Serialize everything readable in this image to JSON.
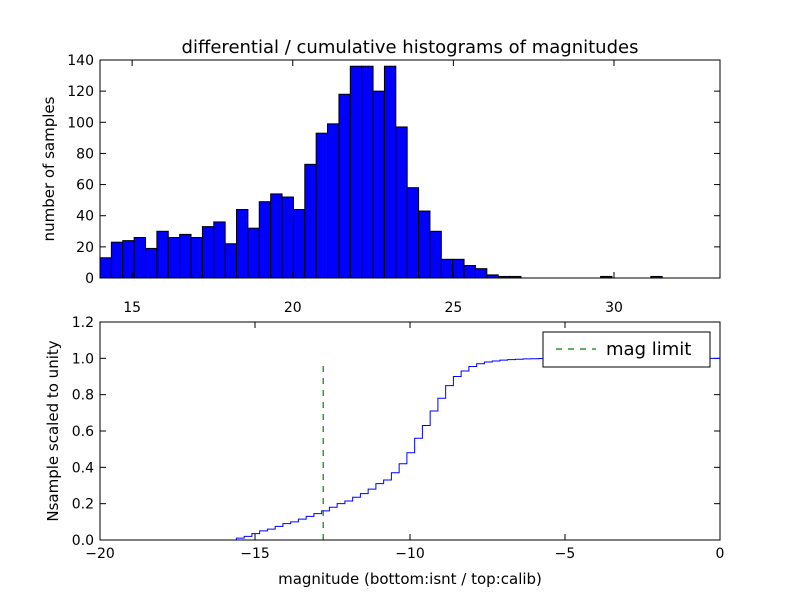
{
  "chart_data": [
    {
      "type": "bar",
      "title": "differential / cumulative histograms of magnitudes",
      "xlabel": "",
      "ylabel": "number of samples",
      "xlim": [
        14,
        33.3
      ],
      "ylim": [
        0,
        140
      ],
      "xticks": [
        15,
        20,
        25,
        30
      ],
      "yticks": [
        0,
        20,
        40,
        60,
        80,
        100,
        120,
        140
      ],
      "bin_width": 0.3542,
      "bin_starts": [
        14.0,
        14.354,
        14.708,
        15.063,
        15.417,
        15.771,
        16.125,
        16.479,
        16.833,
        17.188,
        17.542,
        17.896,
        18.25,
        18.604,
        18.958,
        19.313,
        19.667,
        20.021,
        20.375,
        20.729,
        21.083,
        21.438,
        21.792,
        22.146,
        22.5,
        22.854,
        23.208,
        23.563,
        23.917,
        24.271,
        24.625,
        24.979,
        25.333,
        25.688,
        26.042,
        26.396,
        26.75,
        29.583,
        31.146
      ],
      "values": [
        13,
        23,
        24,
        26,
        19,
        30,
        26,
        28,
        26,
        33,
        36,
        22,
        44,
        32,
        49,
        54,
        52,
        44,
        73,
        93,
        99,
        118,
        136,
        136,
        120,
        136,
        97,
        58,
        43,
        30,
        12,
        12,
        8,
        6,
        2,
        1,
        1,
        1,
        1
      ]
    },
    {
      "type": "line",
      "title": "",
      "xlabel": "magnitude (bottom:isnt / top:calib)",
      "ylabel": "Nsample scaled to unity",
      "xlim": [
        -20,
        0
      ],
      "ylim": [
        0,
        1.2
      ],
      "xticks": [
        -20,
        -15,
        -10,
        -5,
        0
      ],
      "xtick_labels": [
        "−20",
        "−15",
        "−10",
        "−5",
        "0"
      ],
      "yticks": [
        0.0,
        0.2,
        0.4,
        0.6,
        0.8,
        1.0,
        1.2
      ],
      "ytick_labels": [
        "0.0",
        "0.2",
        "0.4",
        "0.6",
        "0.8",
        "1.0",
        "1.2"
      ],
      "series": [
        {
          "name": "",
          "x": [
            -20.0,
            -15.6,
            -15.35,
            -15.1,
            -14.85,
            -14.6,
            -14.35,
            -14.1,
            -13.85,
            -13.6,
            -13.35,
            -13.1,
            -12.85,
            -12.6,
            -12.35,
            -12.1,
            -11.85,
            -11.6,
            -11.35,
            -11.1,
            -10.85,
            -10.6,
            -10.35,
            -10.1,
            -9.85,
            -9.6,
            -9.35,
            -9.1,
            -8.85,
            -8.6,
            -8.35,
            -8.1,
            -7.85,
            -7.6,
            -7.35,
            -7.1,
            -6.85,
            -6.6,
            -6.35,
            -6.1,
            -5.85,
            -5.6,
            -5.35,
            -5.1,
            -4.85,
            0.0
          ],
          "y": [
            0.0,
            0.01,
            0.02,
            0.035,
            0.05,
            0.06,
            0.075,
            0.09,
            0.1,
            0.115,
            0.13,
            0.145,
            0.16,
            0.18,
            0.2,
            0.215,
            0.235,
            0.255,
            0.28,
            0.31,
            0.33,
            0.37,
            0.42,
            0.48,
            0.56,
            0.63,
            0.71,
            0.78,
            0.85,
            0.9,
            0.93,
            0.955,
            0.97,
            0.98,
            0.985,
            0.99,
            0.993,
            0.995,
            0.997,
            0.998,
            0.999,
            0.9995,
            1.0,
            1.0,
            1.0,
            0.0
          ]
        },
        {
          "name": "mag limit",
          "x": [
            -12.8,
            -12.8
          ],
          "y": [
            0.0,
            0.97
          ]
        }
      ],
      "legend": {
        "position": "top-right",
        "entries": [
          "mag limit"
        ]
      }
    }
  ],
  "colors": {
    "bar": "#0000ff",
    "cumulative": "#0000ff",
    "mag_limit": "#008000"
  }
}
